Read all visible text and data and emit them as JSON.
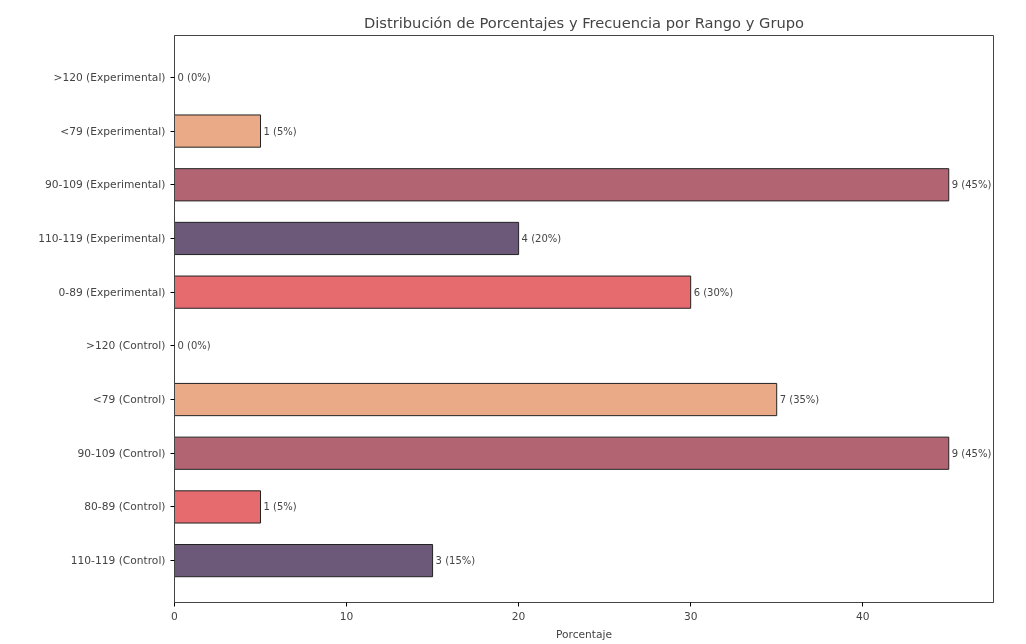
{
  "chart_data": {
    "type": "bar",
    "orientation": "horizontal",
    "title": "Distribución de Porcentajes y Frecuencia por Rango y Grupo",
    "xlabel": "Porcentaje",
    "categories": [
      ">120 (Experimental)",
      "<79 (Experimental)",
      "90-109 (Experimental)",
      "110-119 (Experimental)",
      "0-89 (Experimental)",
      ">120 (Control)",
      "<79 (Control)",
      "90-109 (Control)",
      "80-89 (Control)",
      "110-119 (Control)"
    ],
    "values": [
      0,
      5,
      45,
      20,
      30,
      0,
      35,
      45,
      5,
      15
    ],
    "colors": [
      "#eaaa88",
      "#eaaa88",
      "#b36473",
      "#6c5878",
      "#e56b6f",
      "#eaaa88",
      "#eaaa88",
      "#b36473",
      "#e56b6f",
      "#6c5878"
    ],
    "value_labels": [
      "0 (0%)",
      "1 (5%)",
      "9 (45%)",
      "4 (20%)",
      "6 (30%)",
      "0 (0%)",
      "7 (35%)",
      "9 (45%)",
      "1 (5%)",
      "3 (15%)"
    ],
    "xlim": [
      0,
      47.6
    ],
    "xticks": [
      0,
      10,
      20,
      30,
      40
    ],
    "grid": false
  }
}
